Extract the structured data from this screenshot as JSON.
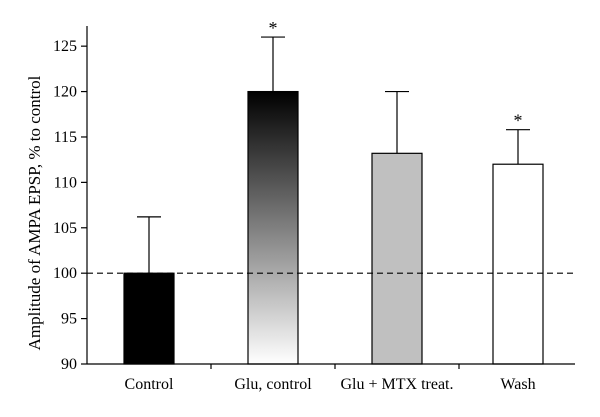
{
  "chart_data": {
    "type": "bar",
    "title": "",
    "xlabel": "",
    "ylabel": "Amplitude of AMPA EPSP, % to control",
    "ylim": [
      90,
      127
    ],
    "yticks": [
      90,
      95,
      100,
      105,
      110,
      115,
      120,
      125
    ],
    "grid": false,
    "legend": "none",
    "categories": [
      "Control",
      "Glu, control",
      "Glu + MTX treat.",
      "Wash"
    ],
    "values": [
      100,
      120,
      113.2,
      112
    ],
    "error_upper": [
      106.2,
      126,
      120,
      115.8
    ],
    "annotations": [
      "",
      "*",
      "",
      "*"
    ],
    "fills": [
      "solid-black",
      "gradient-black-to-white",
      "solid-gray",
      "solid-white"
    ],
    "colors": {
      "black": "#000000",
      "gray": "#c0c0c0",
      "white": "#ffffff"
    },
    "reference_line": {
      "y": 100,
      "style": "dashed"
    }
  }
}
